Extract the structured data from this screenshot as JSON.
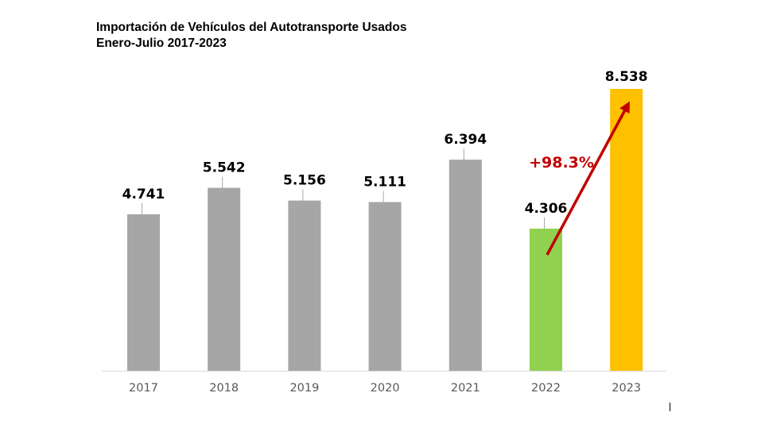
{
  "chart_data": {
    "type": "bar",
    "title": "Importación de Vehículos del Autotransporte Usados",
    "subtitle": "Enero-Julio 2017-2023",
    "categories": [
      "2017",
      "2018",
      "2019",
      "2020",
      "2021",
      "2022",
      "2023"
    ],
    "values": [
      4741,
      5542,
      5156,
      5111,
      6394,
      4306,
      8538
    ],
    "value_labels": [
      "4.741",
      "5.542",
      "5.156",
      "5.111",
      "6.394",
      "4.306",
      "8.538"
    ],
    "bar_colors": [
      "#a6a6a6",
      "#a6a6a6",
      "#a6a6a6",
      "#a6a6a6",
      "#a6a6a6",
      "#92d050",
      "#ffc000"
    ],
    "ylim": [
      0,
      9000
    ],
    "xlabel": "",
    "ylabel": "",
    "grid": false,
    "annotation": {
      "text": "+98.3%",
      "from_category": "2022",
      "to_category": "2023",
      "color": "#c00000"
    }
  }
}
